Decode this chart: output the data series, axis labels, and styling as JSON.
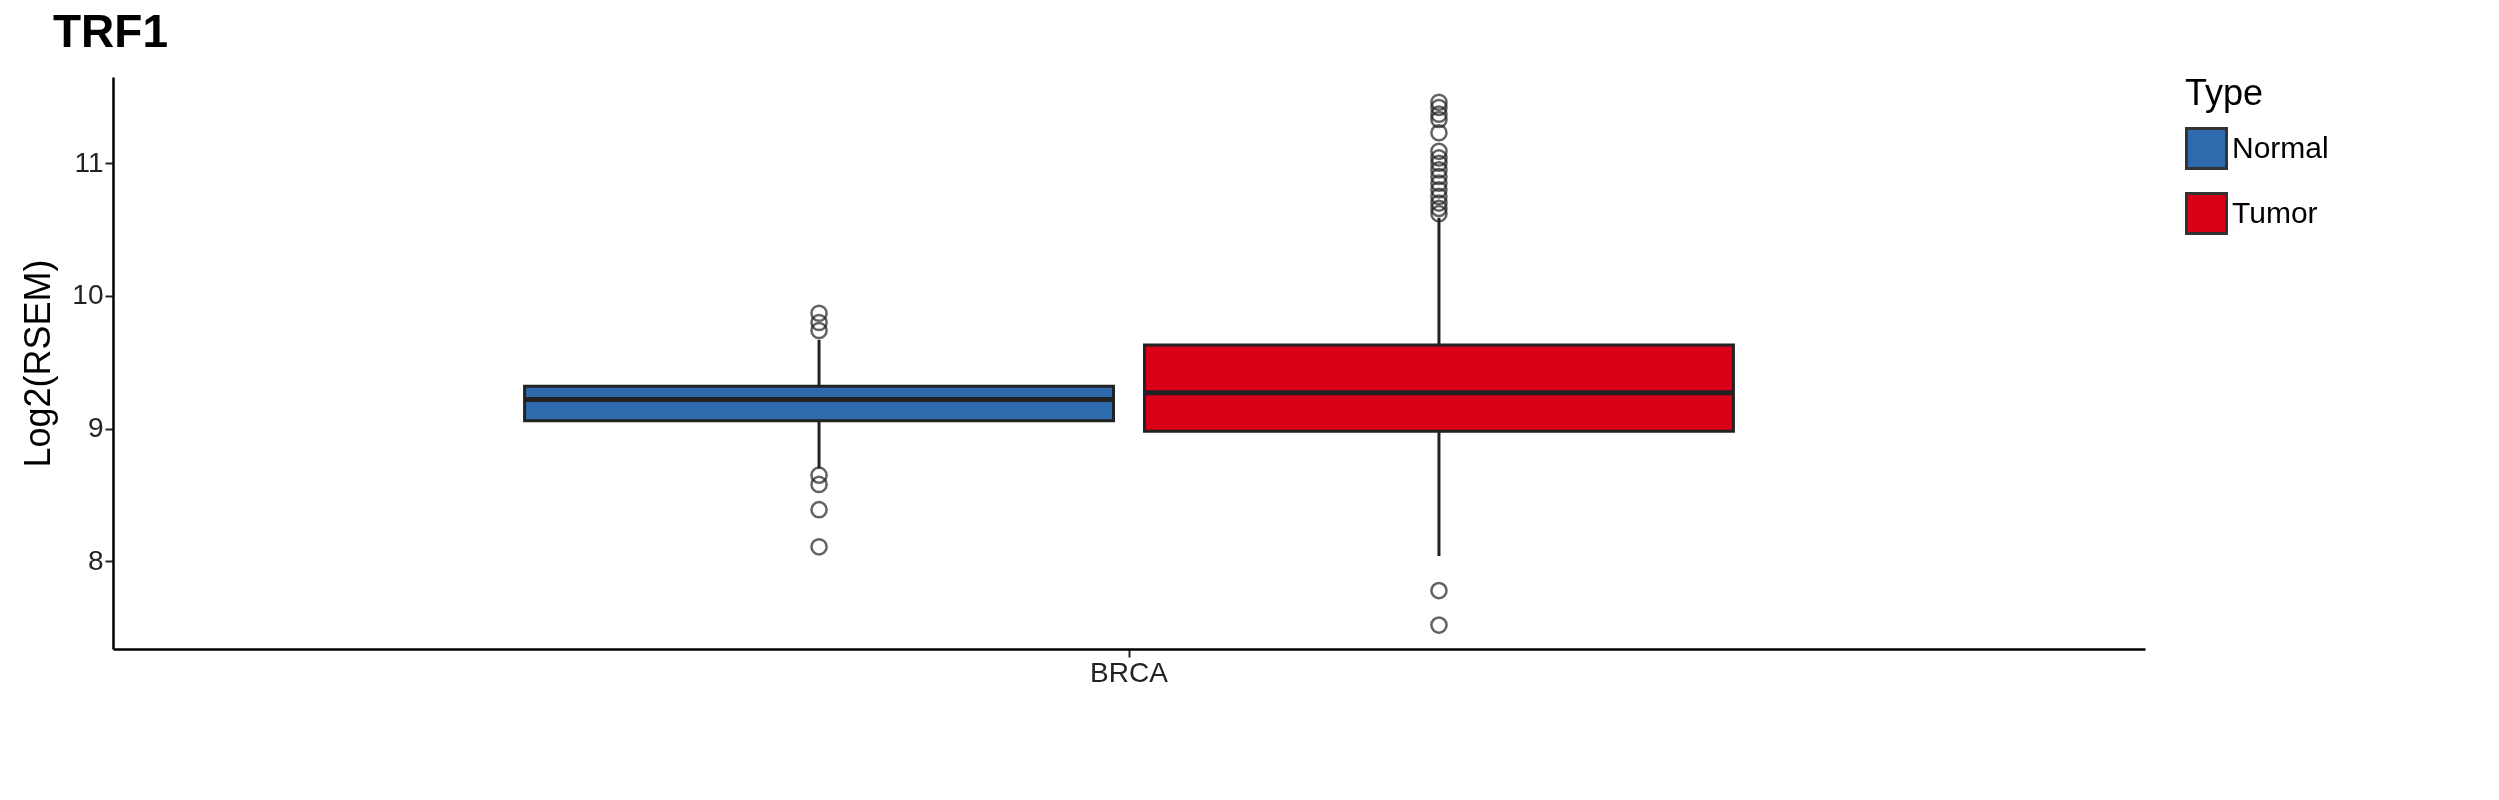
{
  "chart_data": {
    "type": "box",
    "title": "TRF1",
    "ylabel": "Log2(RSEM)",
    "legend_title": "Type",
    "legend": "right",
    "grid": false,
    "categories": [
      "BRCA"
    ],
    "ylim": [
      7.34,
      11.65
    ],
    "yticks": [
      8,
      9,
      10,
      11
    ],
    "series": [
      {
        "name": "Normal",
        "color": "#2e6bad",
        "boxes": [
          {
            "low": 8.7,
            "q1": 9.06,
            "median": 9.22,
            "q3": 9.32,
            "high": 9.67,
            "outliers": [
              9.87,
              9.8,
              9.74,
              8.65,
              8.58,
              8.39,
              8.11
            ]
          }
        ]
      },
      {
        "name": "Tumor",
        "color": "#d90018",
        "boxes": [
          {
            "low": 8.04,
            "q1": 8.98,
            "median": 9.27,
            "q3": 9.63,
            "high": 10.59,
            "outliers": [
              11.46,
              11.42,
              11.37,
              11.33,
              11.23,
              11.09,
              11.04,
              11.0,
              10.95,
              10.9,
              10.85,
              10.8,
              10.75,
              10.7,
              10.66,
              10.62,
              7.78,
              7.52
            ]
          }
        ]
      }
    ]
  }
}
